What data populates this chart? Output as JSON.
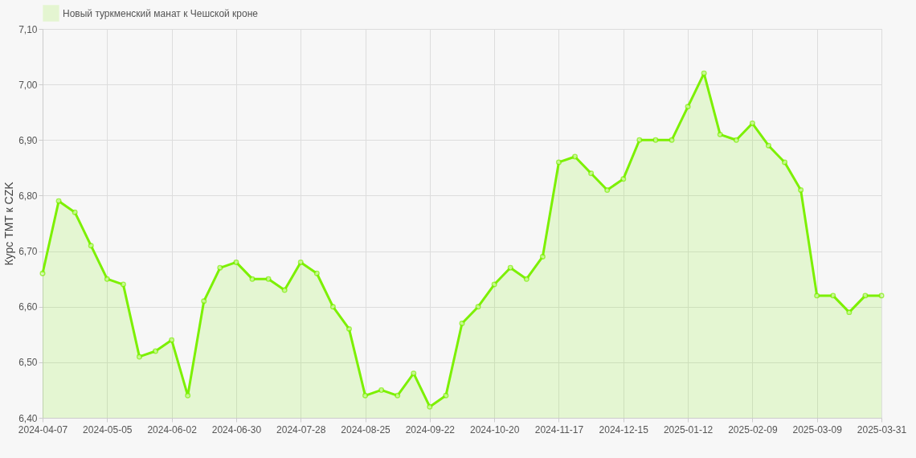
{
  "chart_data": {
    "type": "area",
    "ylabel": "Курс TMT к CZK",
    "legend": "top",
    "grid": true,
    "marker": "circle",
    "categories": [
      "2024-04-07",
      null,
      null,
      null,
      "2024-05-05",
      null,
      null,
      null,
      "2024-06-02",
      null,
      null,
      null,
      "2024-06-30",
      null,
      null,
      null,
      "2024-07-28",
      null,
      null,
      null,
      "2024-08-25",
      null,
      null,
      null,
      "2024-09-22",
      null,
      null,
      null,
      "2024-10-20",
      null,
      null,
      null,
      "2024-11-17",
      null,
      null,
      null,
      "2024-12-15",
      null,
      null,
      null,
      "2025-01-12",
      null,
      null,
      null,
      "2025-02-09",
      null,
      null,
      null,
      "2025-03-09",
      null,
      null,
      null,
      "2025-03-31"
    ],
    "ylim": [
      6.4,
      7.1
    ],
    "yticks": [
      {
        "value": 6.4,
        "label": "6,40"
      },
      {
        "value": 6.5,
        "label": "6,50"
      },
      {
        "value": 6.6,
        "label": "6,60"
      },
      {
        "value": 6.7,
        "label": "6,70"
      },
      {
        "value": 6.8,
        "label": "6,80"
      },
      {
        "value": 6.9,
        "label": "6,90"
      },
      {
        "value": 7.0,
        "label": "7,00"
      },
      {
        "value": 7.1,
        "label": "7,10"
      }
    ],
    "series": [
      {
        "name": "Новый туркменский манат к Чешской кроне",
        "color": "#7cf000",
        "values": [
          6.66,
          6.79,
          6.77,
          6.71,
          6.65,
          6.64,
          6.51,
          6.52,
          6.54,
          6.44,
          6.61,
          6.67,
          6.68,
          6.65,
          6.65,
          6.63,
          6.68,
          6.66,
          6.6,
          6.56,
          6.44,
          6.45,
          6.44,
          6.48,
          6.42,
          6.44,
          6.57,
          6.6,
          6.64,
          6.67,
          6.65,
          6.69,
          6.86,
          6.87,
          6.84,
          6.81,
          6.83,
          6.9,
          6.9,
          6.9,
          6.96,
          7.02,
          6.91,
          6.9,
          6.93,
          6.89,
          6.86,
          6.81,
          6.62,
          6.62,
          6.59,
          6.62,
          6.62
        ]
      }
    ]
  }
}
